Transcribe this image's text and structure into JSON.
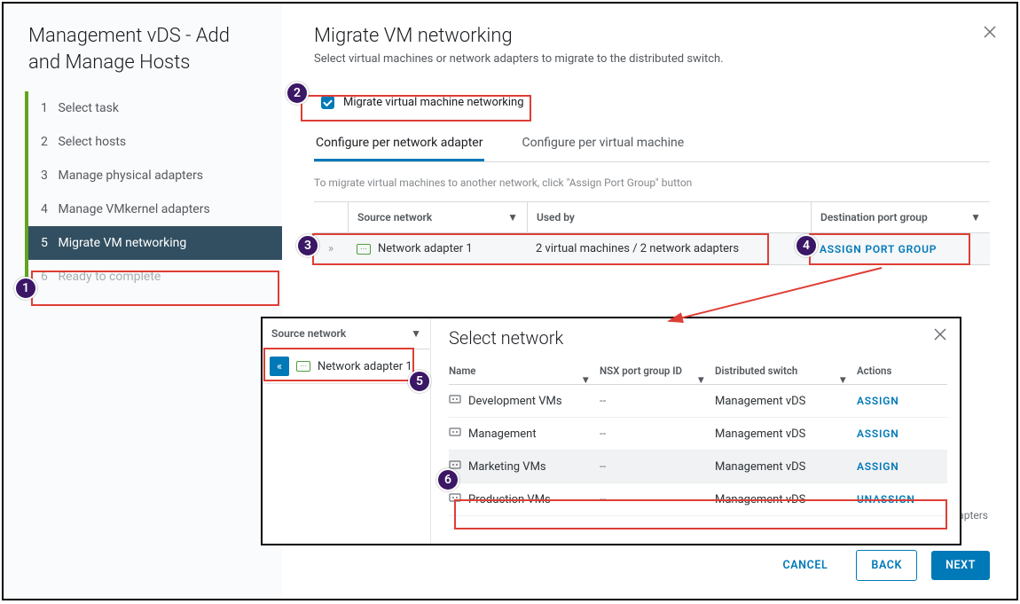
{
  "wizard": {
    "title": "Management vDS - Add and Manage Hosts",
    "steps": [
      {
        "n": "1",
        "label": "Select task"
      },
      {
        "n": "2",
        "label": "Select hosts"
      },
      {
        "n": "3",
        "label": "Manage physical adapters"
      },
      {
        "n": "4",
        "label": "Manage VMkernel adapters"
      },
      {
        "n": "5",
        "label": "Migrate VM networking"
      },
      {
        "n": "6",
        "label": "Ready to complete"
      }
    ],
    "active_index": 4,
    "disabled_indices": [
      5
    ]
  },
  "main": {
    "title": "Migrate VM networking",
    "subtitle": "Select virtual machines or network adapters to migrate to the distributed switch.",
    "checkbox_label": "Migrate virtual machine networking",
    "checkbox_checked": true,
    "tabs": [
      {
        "label": "Configure per network adapter",
        "active": true
      },
      {
        "label": "Configure per virtual machine",
        "active": false
      }
    ],
    "hint": "To migrate virtual machines to another network, click \"Assign Port Group\" button",
    "columns": {
      "source": "Source network",
      "used_by": "Used by",
      "destination": "Destination port group"
    },
    "row": {
      "adapter": "Network adapter 1",
      "used_by": "2 virtual machines / 2 network adapters",
      "action": "ASSIGN PORT GROUP"
    }
  },
  "popover": {
    "left": {
      "column": "Source network",
      "adapter": "Network adapter 1"
    },
    "title": "Select network",
    "columns": {
      "name": "Name",
      "nsx": "NSX port group ID",
      "ds": "Distributed switch",
      "actions": "Actions"
    },
    "rows": [
      {
        "name": "Development VMs",
        "nsx": "--",
        "ds": "Management vDS",
        "action": "ASSIGN",
        "hl": false
      },
      {
        "name": "Management",
        "nsx": "--",
        "ds": "Management vDS",
        "action": "ASSIGN",
        "hl": false
      },
      {
        "name": "Marketing VMs",
        "nsx": "--",
        "ds": "Management vDS",
        "action": "ASSIGN",
        "hl": true
      },
      {
        "name": "Production VMs",
        "nsx": "--",
        "ds": "Management vDS",
        "action": "UNASSIGN",
        "hl": false
      }
    ]
  },
  "footer": {
    "cancel": "CANCEL",
    "back": "BACK",
    "next": "NEXT"
  },
  "ghost_count": "work adapters",
  "callouts": [
    "1",
    "2",
    "3",
    "4",
    "5",
    "6"
  ],
  "colors": {
    "accent": "#0079b8",
    "callout_bg": "#3b1766",
    "highlight_border": "#de3e35",
    "step_accent": "#62a420"
  }
}
